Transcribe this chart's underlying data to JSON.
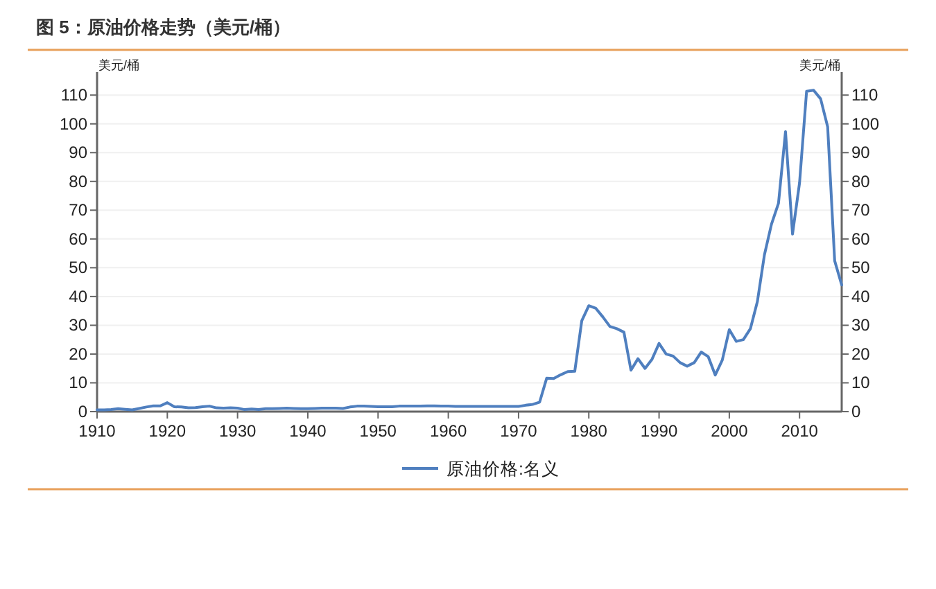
{
  "chart_data": {
    "type": "line",
    "title": "图 5：原油价格走势（美元/桶）",
    "ylabel": "美元/桶",
    "y2label": "美元/桶",
    "x": [
      1910,
      1911,
      1912,
      1913,
      1914,
      1915,
      1916,
      1917,
      1918,
      1919,
      1920,
      1921,
      1922,
      1923,
      1924,
      1925,
      1926,
      1927,
      1928,
      1929,
      1930,
      1931,
      1932,
      1933,
      1934,
      1935,
      1936,
      1937,
      1938,
      1939,
      1940,
      1941,
      1942,
      1943,
      1944,
      1945,
      1946,
      1947,
      1948,
      1949,
      1950,
      1951,
      1952,
      1953,
      1954,
      1955,
      1956,
      1957,
      1958,
      1959,
      1960,
      1961,
      1962,
      1963,
      1964,
      1965,
      1966,
      1967,
      1968,
      1969,
      1970,
      1971,
      1972,
      1973,
      1974,
      1975,
      1976,
      1977,
      1978,
      1979,
      1980,
      1981,
      1982,
      1983,
      1984,
      1985,
      1986,
      1987,
      1988,
      1989,
      1990,
      1991,
      1992,
      1993,
      1994,
      1995,
      1996,
      1997,
      1998,
      1999,
      2000,
      2001,
      2002,
      2003,
      2004,
      2005,
      2006,
      2007,
      2008,
      2009,
      2010,
      2011,
      2012,
      2013,
      2014,
      2015,
      2016
    ],
    "series": [
      {
        "name": "原油价格:名义",
        "color": "#4f7fbf",
        "values": [
          0.6,
          0.6,
          0.7,
          1.0,
          0.8,
          0.6,
          1.1,
          1.6,
          2.0,
          2.0,
          3.1,
          1.7,
          1.6,
          1.3,
          1.4,
          1.7,
          1.9,
          1.3,
          1.2,
          1.3,
          1.2,
          0.7,
          0.9,
          0.7,
          1.0,
          1.0,
          1.1,
          1.2,
          1.1,
          1.0,
          1.0,
          1.1,
          1.2,
          1.2,
          1.2,
          1.1,
          1.6,
          1.9,
          1.9,
          1.8,
          1.7,
          1.7,
          1.7,
          1.9,
          1.9,
          1.9,
          1.9,
          2.0,
          2.0,
          1.9,
          1.9,
          1.8,
          1.8,
          1.8,
          1.8,
          1.8,
          1.8,
          1.8,
          1.8,
          1.8,
          1.8,
          2.2,
          2.5,
          3.3,
          11.6,
          11.5,
          12.8,
          13.9,
          14.0,
          31.6,
          36.8,
          35.9,
          32.9,
          29.6,
          28.8,
          27.6,
          14.4,
          18.4,
          15.0,
          18.2,
          23.7,
          20.0,
          19.3,
          17.0,
          15.8,
          17.0,
          20.7,
          19.1,
          12.7,
          17.9,
          28.5,
          24.4,
          25.0,
          28.8,
          38.3,
          54.5,
          65.1,
          72.4,
          97.3,
          61.7,
          79.5,
          111.3,
          111.7,
          108.7,
          99.0,
          52.4,
          44.0
        ]
      }
    ],
    "xlim": [
      1910,
      2016
    ],
    "xticks": [
      1910,
      1920,
      1930,
      1940,
      1950,
      1960,
      1970,
      1980,
      1990,
      2000,
      2010
    ],
    "ylim": [
      0,
      118
    ],
    "yticks": [
      0,
      10,
      20,
      30,
      40,
      50,
      60,
      70,
      80,
      90,
      100,
      110
    ],
    "y2lim": [
      0,
      118
    ],
    "y2ticks": [
      0,
      10,
      20,
      30,
      40,
      50,
      60,
      70,
      80,
      90,
      100,
      110
    ],
    "grid": "y",
    "legend": "bottom",
    "marker": "none",
    "line_style": "solid"
  }
}
